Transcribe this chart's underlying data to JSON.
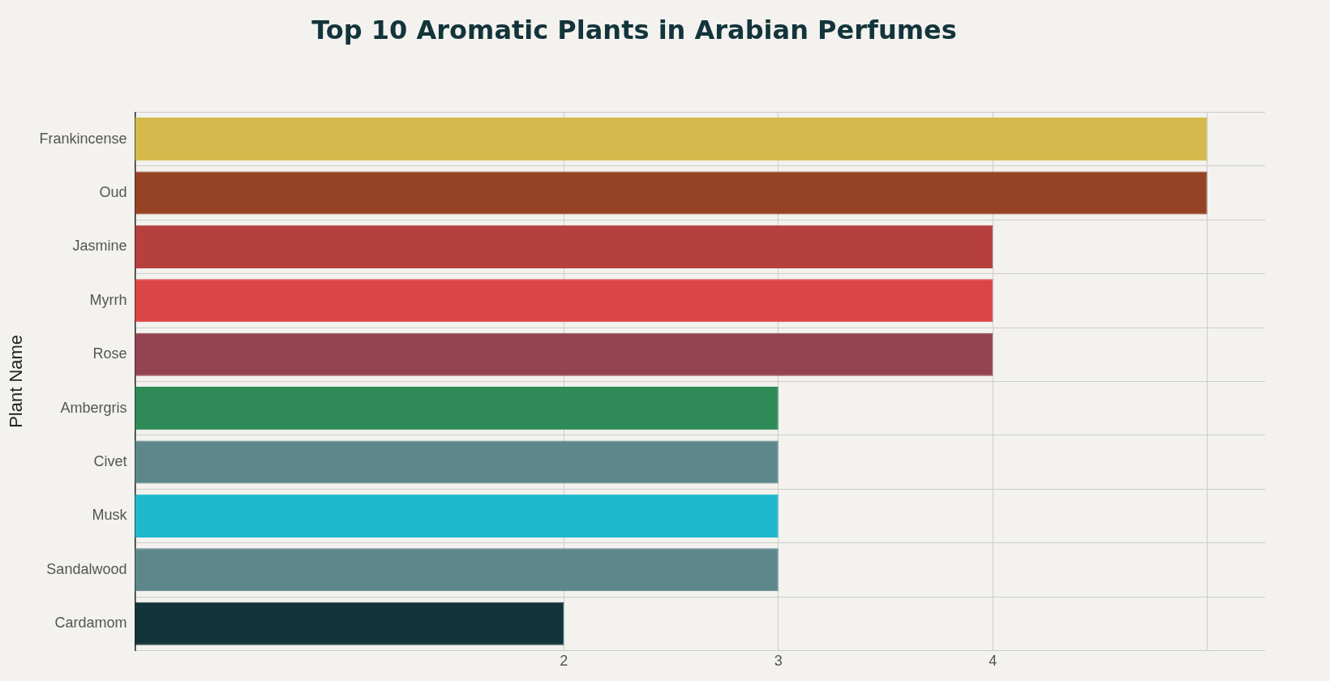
{
  "chart_data": {
    "type": "bar",
    "orientation": "horizontal",
    "title": "Top 10 Aromatic Plants in Arabian Perfumes",
    "ylabel": "Plant Name",
    "categories": [
      "Frankincense",
      "Oud",
      "Jasmine",
      "Myrrh",
      "Rose",
      "Ambergris",
      "Civet",
      "Musk",
      "Sandalwood",
      "Cardamom"
    ],
    "values": [
      5,
      5,
      4,
      4,
      4,
      3,
      3,
      3,
      3,
      2
    ],
    "colors": [
      "#d4b94c",
      "#964325",
      "#b5403e",
      "#db4545",
      "#944451",
      "#2e8b57",
      "#5e878c",
      "#1fb8cd",
      "#5e878c",
      "#13343b"
    ],
    "xlim": [
      0,
      5.27
    ],
    "xticks": [
      2,
      3,
      4,
      {
        "value": 5,
        "label": null
      }
    ],
    "grid": true
  }
}
